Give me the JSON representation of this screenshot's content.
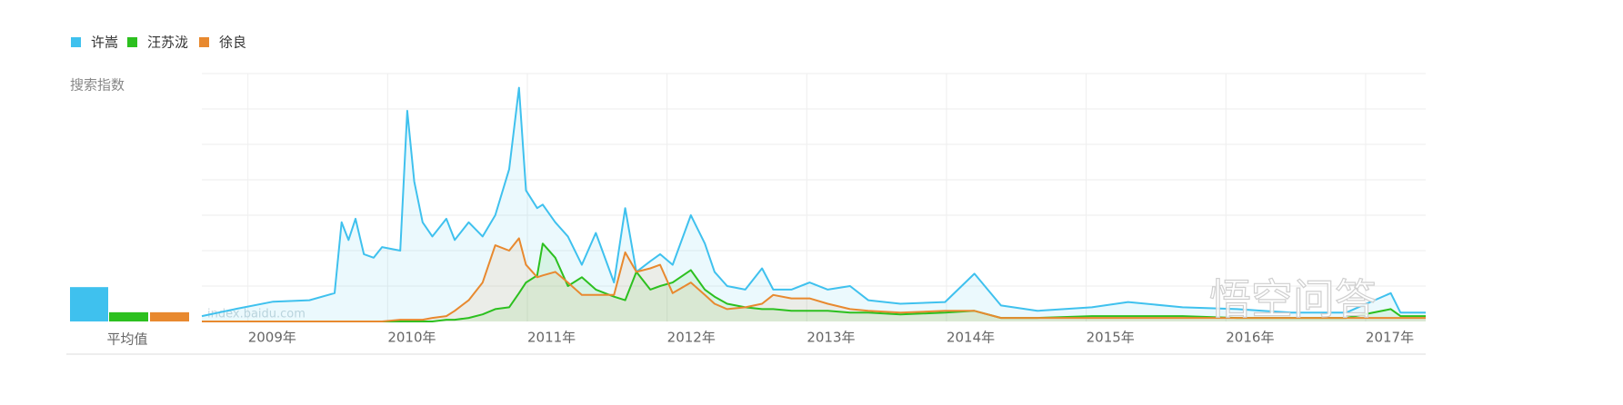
{
  "chart_data": {
    "type": "line",
    "ylabel": "搜索指数",
    "average_label": "平均值",
    "watermarks": [
      "index.baidu.com",
      "悟空问答"
    ],
    "xlim": [
      2008.67,
      2017.43
    ],
    "xticks": [
      {
        "value": 2009,
        "label": "2009年"
      },
      {
        "value": 2010,
        "label": "2010年"
      },
      {
        "value": 2011,
        "label": "2011年"
      },
      {
        "value": 2012,
        "label": "2012年"
      },
      {
        "value": 2013,
        "label": "2013年"
      },
      {
        "value": 2014,
        "label": "2014年"
      },
      {
        "value": 2015,
        "label": "2015年"
      },
      {
        "value": 2016,
        "label": "2016年"
      },
      {
        "value": 2017,
        "label": "2017年"
      }
    ],
    "ylim": [
      0,
      7
    ],
    "yticks": [
      1,
      2,
      3,
      4,
      5,
      6,
      7
    ],
    "ytick_labels": false,
    "grid": true,
    "x": [
      2008.67,
      2008.92,
      2009.18,
      2009.44,
      2009.62,
      2009.67,
      2009.72,
      2009.77,
      2009.83,
      2009.9,
      2009.96,
      2010.09,
      2010.14,
      2010.19,
      2010.25,
      2010.32,
      2010.42,
      2010.48,
      2010.58,
      2010.68,
      2010.77,
      2010.87,
      2010.94,
      2010.99,
      2011.07,
      2011.11,
      2011.2,
      2011.29,
      2011.39,
      2011.49,
      2011.62,
      2011.7,
      2011.78,
      2011.88,
      2011.95,
      2012.04,
      2012.17,
      2012.27,
      2012.34,
      2012.43,
      2012.56,
      2012.68,
      2012.76,
      2012.89,
      2013.02,
      2013.15,
      2013.31,
      2013.44,
      2013.67,
      2013.99,
      2014.2,
      2014.39,
      2014.65,
      2015.04,
      2015.3,
      2015.69,
      2016.08,
      2016.47,
      2016.86,
      2017.18,
      2017.25,
      2017.43
    ],
    "series": [
      {
        "name": "许嵩",
        "color": "#3fc1ee",
        "average": 0.97,
        "values": [
          0.15,
          0.36,
          0.56,
          0.6,
          0.8,
          2.8,
          2.3,
          2.9,
          1.9,
          1.8,
          2.1,
          2.0,
          5.95,
          3.95,
          2.8,
          2.4,
          2.9,
          2.3,
          2.8,
          2.4,
          3.0,
          4.3,
          6.6,
          3.7,
          3.2,
          3.3,
          2.8,
          2.4,
          1.6,
          2.5,
          1.1,
          3.2,
          1.4,
          1.7,
          1.9,
          1.6,
          3.0,
          2.2,
          1.4,
          1.0,
          0.9,
          1.5,
          0.9,
          0.9,
          1.1,
          0.9,
          1.0,
          0.6,
          0.5,
          0.55,
          1.35,
          0.45,
          0.3,
          0.4,
          0.55,
          0.4,
          0.35,
          0.25,
          0.25,
          0.8,
          0.25,
          0.25
        ]
      },
      {
        "name": "汪苏泷",
        "color": "#2cc01f",
        "average": 0.26,
        "values": [
          0,
          0,
          0,
          0,
          0,
          0,
          0,
          0,
          0,
          0,
          0,
          0,
          0,
          0,
          0,
          0,
          0.05,
          0.05,
          0.1,
          0.2,
          0.35,
          0.4,
          0.8,
          1.1,
          1.3,
          2.2,
          1.8,
          1.0,
          1.25,
          0.9,
          0.7,
          0.6,
          1.4,
          0.9,
          1.0,
          1.1,
          1.45,
          0.9,
          0.7,
          0.5,
          0.4,
          0.35,
          0.35,
          0.3,
          0.3,
          0.3,
          0.25,
          0.25,
          0.2,
          0.25,
          0.3,
          0.1,
          0.1,
          0.15,
          0.15,
          0.15,
          0.1,
          0.1,
          0.1,
          0.35,
          0.15,
          0.15
        ]
      },
      {
        "name": "徐良",
        "color": "#e8892f",
        "average": 0.26,
        "values": [
          0,
          0,
          0,
          0,
          0,
          0,
          0,
          0,
          0,
          0,
          0,
          0.05,
          0.05,
          0.05,
          0.05,
          0.1,
          0.15,
          0.3,
          0.6,
          1.1,
          2.15,
          2.0,
          2.35,
          1.6,
          1.25,
          1.3,
          1.4,
          1.1,
          0.75,
          0.75,
          0.75,
          1.95,
          1.4,
          1.5,
          1.6,
          0.8,
          1.1,
          0.75,
          0.5,
          0.35,
          0.4,
          0.5,
          0.75,
          0.65,
          0.65,
          0.5,
          0.35,
          0.3,
          0.25,
          0.3,
          0.3,
          0.1,
          0.1,
          0.1,
          0.1,
          0.1,
          0.1,
          0.1,
          0.1,
          0.1,
          0.1,
          0.1
        ]
      }
    ]
  }
}
